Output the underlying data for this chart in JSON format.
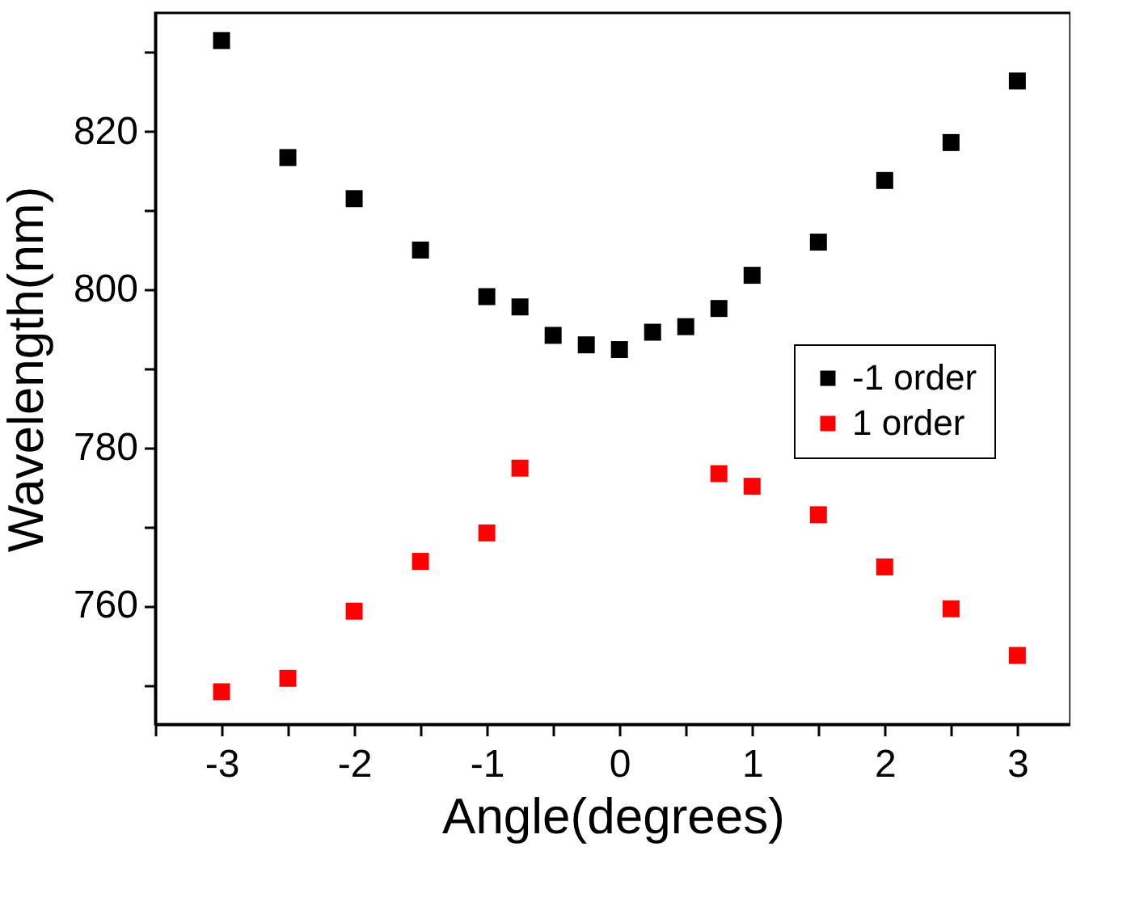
{
  "chart_data": {
    "type": "scatter",
    "xlabel": "Angle(degrees)",
    "ylabel": "Wavelength(nm)",
    "xlim": [
      -3.5,
      3.4
    ],
    "ylim": [
      745,
      835
    ],
    "xticks": [
      {
        "value": -3.5,
        "label": null
      },
      -3,
      {
        "value": -2.5,
        "label": null
      },
      -2,
      {
        "value": -1.5,
        "label": null
      },
      -1,
      {
        "value": -0.5,
        "label": null
      },
      0,
      {
        "value": 0.5,
        "label": null
      },
      1,
      {
        "value": 1.5,
        "label": null
      },
      2,
      {
        "value": 2.5,
        "label": null
      },
      3
    ],
    "yticks": [
      {
        "value": 750,
        "label": null
      },
      760,
      {
        "value": 770,
        "label": null
      },
      780,
      {
        "value": 790,
        "label": null
      },
      800,
      {
        "value": 810,
        "label": null
      },
      820,
      {
        "value": 830,
        "label": null
      }
    ],
    "grid": false,
    "legend": "right",
    "marker": "square",
    "series": [
      {
        "name": "-1 order",
        "color": "#000000",
        "x": [
          -3,
          -2.5,
          -2,
          -1.5,
          -1,
          -0.75,
          -0.5,
          -0.25,
          0,
          0.25,
          0.5,
          0.75,
          1,
          1.5,
          2,
          2.5,
          3
        ],
        "values": [
          831.5,
          816.7,
          811.5,
          805.0,
          799.1,
          797.8,
          794.2,
          793.0,
          792.4,
          794.6,
          795.3,
          797.6,
          801.8,
          806.0,
          813.8,
          818.6,
          826.4
        ]
      },
      {
        "name": "1 order",
        "color": "#ff0000",
        "x": [
          -3,
          -2.5,
          -2,
          -1.5,
          -1,
          -0.75,
          0.75,
          1,
          1.5,
          2,
          2.5,
          3
        ],
        "values": [
          749.1,
          750.8,
          759.3,
          765.6,
          769.2,
          777.4,
          776.7,
          775.1,
          771.5,
          764.9,
          759.6,
          753.7
        ]
      }
    ]
  }
}
